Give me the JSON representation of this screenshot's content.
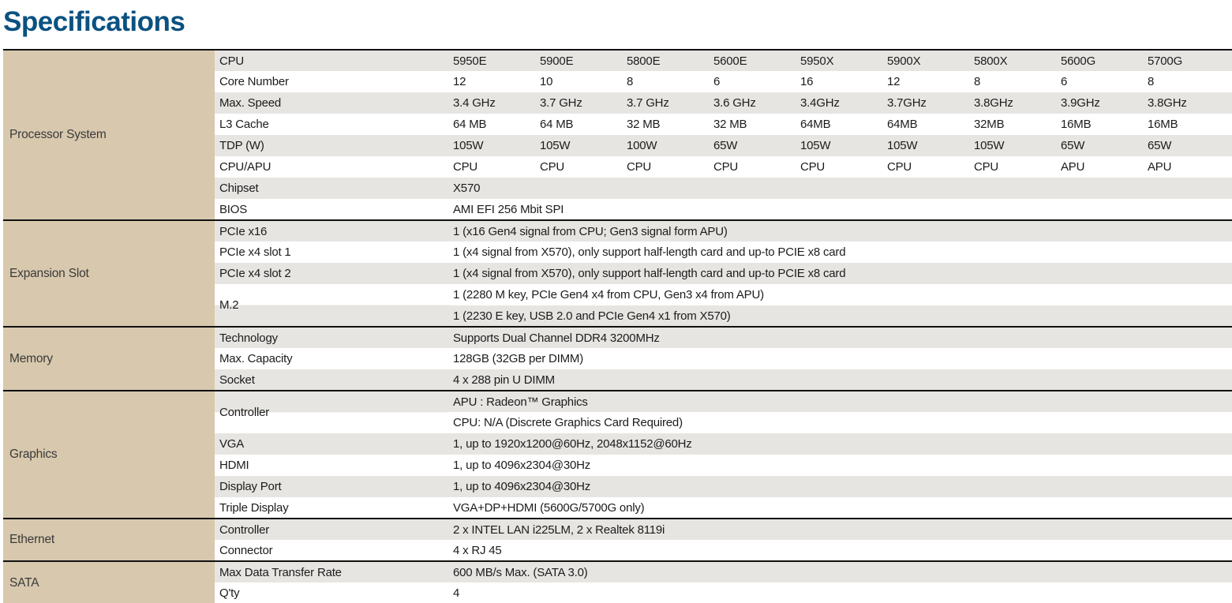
{
  "page_title": "Specifications",
  "colors": {
    "title": "#0a5181",
    "category_bg": "#d8c8ad",
    "row_gray": "#e7e5e2",
    "row_white": "#ffffff",
    "separator": "#111111",
    "text": "#1c1c1c"
  },
  "table": {
    "cpu_column_count": 9,
    "sections": [
      {
        "category": "Processor System",
        "rows": [
          {
            "label": "CPU",
            "values": [
              "5950E",
              "5900E",
              "5800E",
              "5600E",
              "5950X",
              "5900X",
              "5800X",
              "5600G",
              "5700G"
            ]
          },
          {
            "label": "Core Number",
            "values": [
              "12",
              "10",
              "8",
              "6",
              "16",
              "12",
              "8",
              "6",
              "8"
            ]
          },
          {
            "label": "Max. Speed",
            "values": [
              "3.4 GHz",
              "3.7 GHz",
              "3.7 GHz",
              "3.6 GHz",
              "3.4GHz",
              "3.7GHz",
              "3.8GHz",
              "3.9GHz",
              "3.8GHz"
            ]
          },
          {
            "label": "L3 Cache",
            "values": [
              "64 MB",
              "64 MB",
              "32 MB",
              "32 MB",
              "64MB",
              "64MB",
              "32MB",
              "16MB",
              "16MB"
            ]
          },
          {
            "label": "TDP (W)",
            "values": [
              "105W",
              "105W",
              "100W",
              "65W",
              "105W",
              "105W",
              "105W",
              "65W",
              "65W"
            ]
          },
          {
            "label": "CPU/APU",
            "values": [
              "CPU",
              "CPU",
              "CPU",
              "CPU",
              "CPU",
              "CPU",
              "CPU",
              "APU",
              "APU"
            ]
          },
          {
            "label": "Chipset",
            "span": "X570"
          },
          {
            "label": "BIOS",
            "span": "AMI EFI 256 Mbit SPI"
          }
        ]
      },
      {
        "category": "Expansion Slot",
        "rows": [
          {
            "label": "PCIe x16",
            "span": "1 (x16 Gen4 signal from CPU; Gen3 signal form APU)"
          },
          {
            "label": "PCIe x4 slot 1",
            "span": "1 (x4 signal from X570), only support half-length card and up-to PCIE x8 card"
          },
          {
            "label": "PCIe x4 slot 2",
            "span": "1 (x4 signal from X570), only support half-length card and up-to PCIE x8 card"
          },
          {
            "label": "M.2",
            "lines": [
              "1 (2280 M key, PCIe Gen4 x4 from CPU, Gen3 x4 from APU)",
              "1 (2230 E key, USB 2.0 and PCIe Gen4 x1 from X570)"
            ]
          }
        ]
      },
      {
        "category": "Memory",
        "rows": [
          {
            "label": "Technology",
            "span": "Supports Dual Channel DDR4 3200MHz"
          },
          {
            "label": "Max. Capacity",
            "span": "128GB (32GB per DIMM)"
          },
          {
            "label": "Socket",
            "span": "4 x 288 pin U DIMM"
          }
        ]
      },
      {
        "category": "Graphics",
        "rows": [
          {
            "label": "Controller",
            "lines": [
              "APU : Radeon™ Graphics",
              "CPU: N/A (Discrete Graphics Card Required)"
            ]
          },
          {
            "label": "VGA",
            "span": "1, up to 1920x1200@60Hz, 2048x1152@60Hz"
          },
          {
            "label": "HDMI",
            "span": "1, up to 4096x2304@30Hz"
          },
          {
            "label": "Display Port",
            "span": "1, up to 4096x2304@30Hz"
          },
          {
            "label": "Triple Display",
            "span": "VGA+DP+HDMI (5600G/5700G only)"
          }
        ]
      },
      {
        "category": "Ethernet",
        "rows": [
          {
            "label": "Controller",
            "span": "2 x INTEL LAN i225LM, 2 x Realtek 8119i"
          },
          {
            "label": "Connector",
            "span": "4 x RJ 45"
          }
        ]
      },
      {
        "category": "SATA",
        "rows": [
          {
            "label": "Max Data Transfer Rate",
            "span": "600 MB/s Max. (SATA 3.0)"
          },
          {
            "label": "Q'ty",
            "span": "4"
          }
        ]
      }
    ]
  }
}
